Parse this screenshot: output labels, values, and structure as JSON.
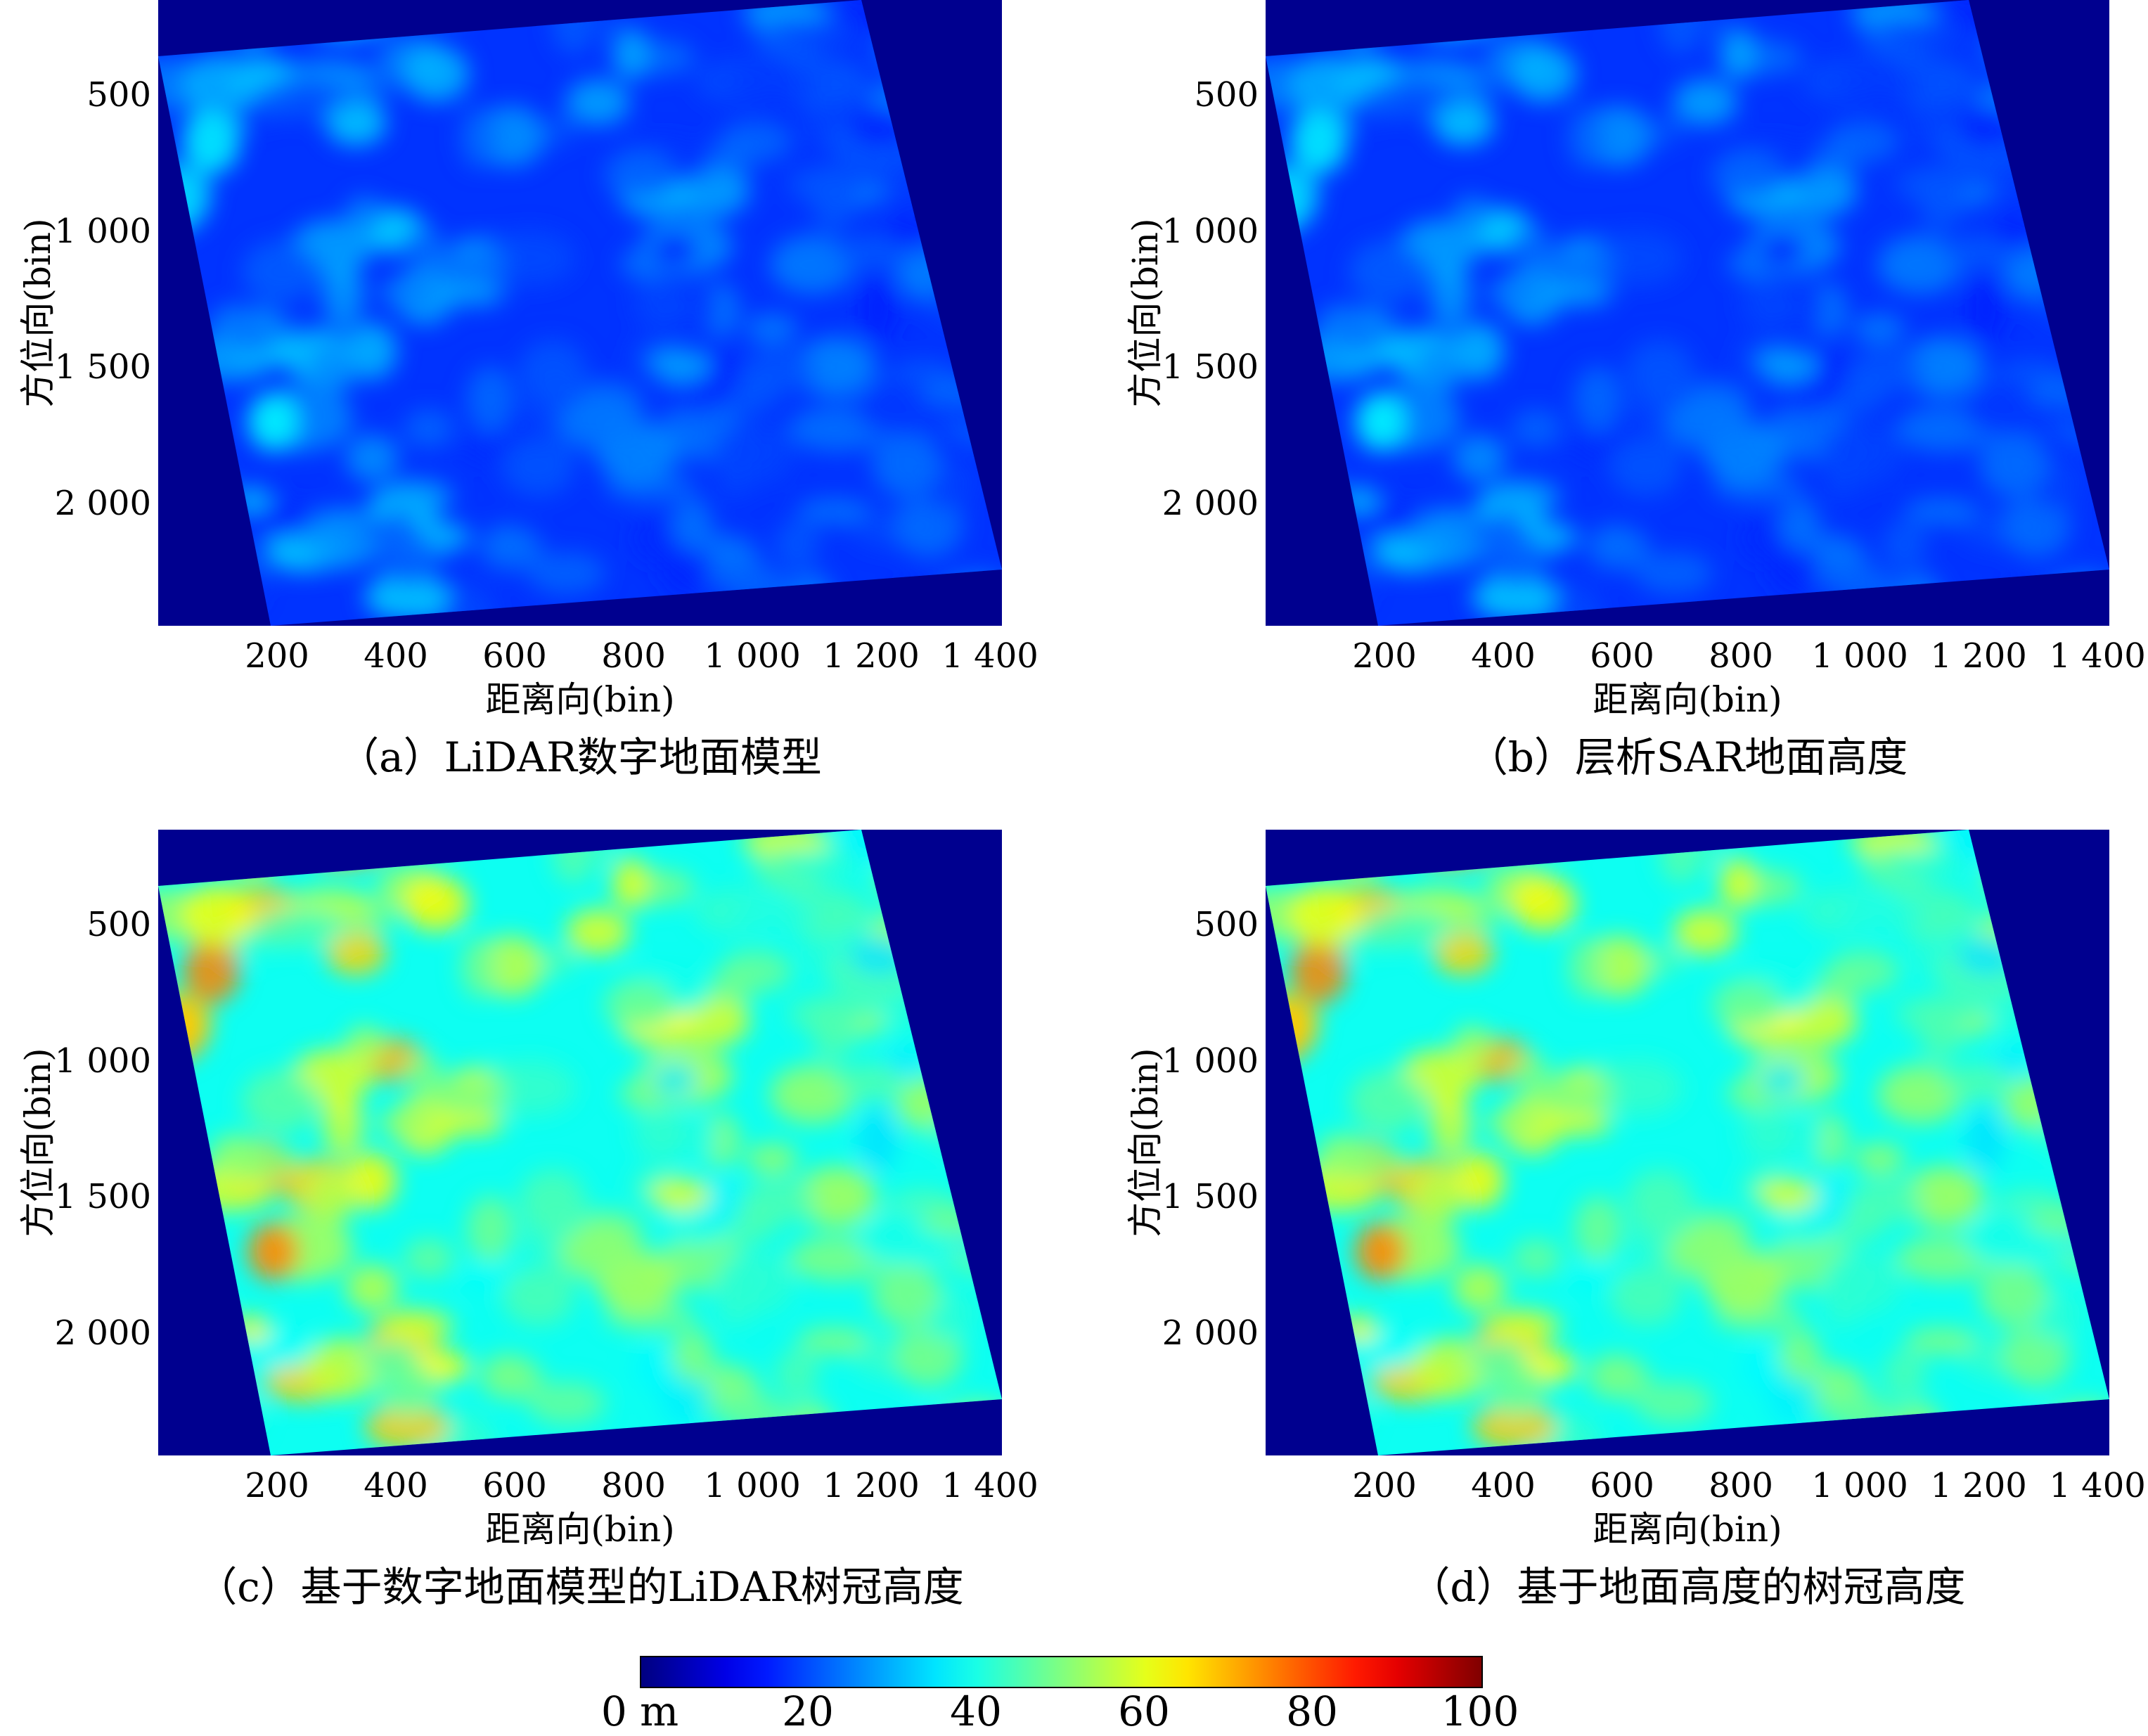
{
  "chart_data": [
    {
      "type": "heatmap",
      "title": "（a）LiDAR数字地面模型",
      "xlabel": "距离向(bin)",
      "ylabel": "方位向(bin)",
      "xticks": [
        "200",
        "400",
        "600",
        "800",
        "1 000",
        "1 200",
        "1 400"
      ],
      "yticks": [
        "500",
        "1 000",
        "1 500",
        "2 000"
      ],
      "xlim": [
        0,
        1420
      ],
      "ylim": [
        150,
        2450
      ],
      "value_range": [
        10,
        40
      ]
    },
    {
      "type": "heatmap",
      "title": "（b）层析SAR地面高度",
      "xlabel": "距离向(bin)",
      "ylabel": "方位向(bin)",
      "xticks": [
        "200",
        "400",
        "600",
        "800",
        "1 000",
        "1 200",
        "1 400"
      ],
      "yticks": [
        "500",
        "1 000",
        "1 500",
        "2 000"
      ],
      "xlim": [
        0,
        1420
      ],
      "ylim": [
        150,
        2450
      ],
      "value_range": [
        10,
        40
      ]
    },
    {
      "type": "heatmap",
      "title": "（c）基于数字地面模型的LiDAR树冠高度",
      "xlabel": "距离向(bin)",
      "ylabel": "方位向(bin)",
      "xticks": [
        "200",
        "400",
        "600",
        "800",
        "1 000",
        "1 200",
        "1 400"
      ],
      "yticks": [
        "500",
        "1 000",
        "1 500",
        "2 000"
      ],
      "xlim": [
        0,
        1420
      ],
      "ylim": [
        150,
        2450
      ],
      "value_range": [
        25,
        80
      ]
    },
    {
      "type": "heatmap",
      "title": "（d）基于地面高度的树冠高度",
      "xlabel": "距离向(bin)",
      "ylabel": "方位向(bin)",
      "xticks": [
        "200",
        "400",
        "600",
        "800",
        "1 000",
        "1 200",
        "1 400"
      ],
      "yticks": [
        "500",
        "1 000",
        "1 500",
        "2 000"
      ],
      "xlim": [
        0,
        1420
      ],
      "ylim": [
        150,
        2450
      ],
      "value_range": [
        25,
        80
      ]
    }
  ],
  "colorbar": {
    "ticks": [
      "0 m",
      "20",
      "40",
      "60",
      "80",
      "100"
    ],
    "range": [
      0,
      100
    ],
    "colormap": "jet"
  },
  "colors": {
    "background": "#00008f",
    "low_terrain": "#1a55ff",
    "high_terrain": "#3fd0ff",
    "canopy_mid": "#66ee99",
    "canopy_high": "#ffcc22",
    "canopy_peak": "#ee2200"
  }
}
